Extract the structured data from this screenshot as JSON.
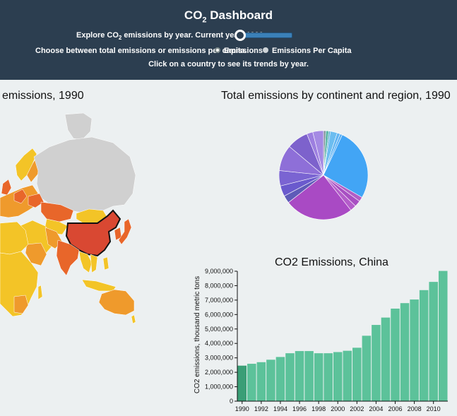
{
  "header": {
    "title_main": "CO",
    "title_sub": "2",
    "title_rest": " Dashboard",
    "line1_a": "Explore CO",
    "line1_sub": "2",
    "line1_b": " emissions by year. Current year: 1990",
    "line2": "Choose between total emissions or emissions per capita.",
    "line3": "Click on a country to see its trends by year.",
    "radio_emissions": "Emissions",
    "radio_percapita": "Emissions Per Capita",
    "selected_mode": "Emissions",
    "slider_value": 1990,
    "slider_min": 1990,
    "slider_max": 2011
  },
  "map": {
    "title": "emissions, 1990",
    "selected_country": "China",
    "colors": {
      "none": "#d0d0d0",
      "low": "#f3c427",
      "mid": "#ef9a2c",
      "high": "#e8662a",
      "top": "#d94832"
    }
  },
  "pie": {
    "title": "Total emissions by continent and region, 1990"
  },
  "chart_data": {
    "type": "bar",
    "title": "CO2 Emissions, China",
    "ylabel": "CO2 emissions, thousand metric tons",
    "xlabel": "",
    "categories": [
      1990,
      1991,
      1992,
      1993,
      1994,
      1995,
      1996,
      1997,
      1998,
      1999,
      2000,
      2001,
      2002,
      2003,
      2004,
      2005,
      2006,
      2007,
      2008,
      2009,
      2010,
      2011
    ],
    "values": [
      2460000,
      2590000,
      2700000,
      2870000,
      3060000,
      3320000,
      3470000,
      3470000,
      3320000,
      3320000,
      3400000,
      3490000,
      3700000,
      4530000,
      5280000,
      5790000,
      6410000,
      6790000,
      7040000,
      7690000,
      8260000,
      9020000
    ],
    "ylim": [
      0,
      9000000
    ],
    "yticks": [
      "0",
      "1,000,000",
      "2,000,000",
      "3,000,000",
      "4,000,000",
      "5,000,000",
      "6,000,000",
      "7,000,000",
      "8,000,000",
      "9,000,000"
    ],
    "xticks": [
      "1990",
      "1992",
      "1994",
      "1996",
      "1998",
      "2000",
      "2002",
      "2004",
      "2006",
      "2008",
      "2010"
    ],
    "bar_color": "#5cc29a",
    "highlight_color": "#3a9e76",
    "highlight_year": 1990
  }
}
